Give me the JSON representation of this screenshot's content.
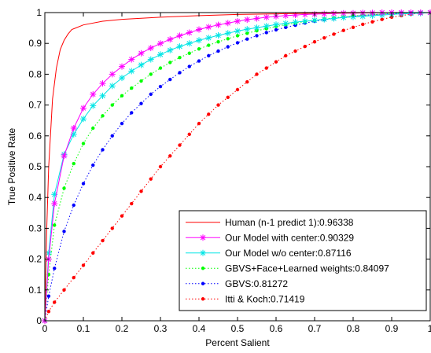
{
  "chart_data": {
    "type": "line",
    "xlabel": "Percent Salient",
    "ylabel": "True Positive Rate",
    "xlim": [
      0,
      1
    ],
    "ylim": [
      0,
      1
    ],
    "x_ticks": [
      "0",
      "0.1",
      "0.2",
      "0.3",
      "0.4",
      "0.5",
      "0.6",
      "0.7",
      "0.8",
      "0.9",
      "1"
    ],
    "y_ticks": [
      "0",
      "0.1",
      "0.2",
      "0.3",
      "0.4",
      "0.5",
      "0.6",
      "0.7",
      "0.8",
      "0.9",
      "1"
    ],
    "grid": false,
    "legend_position": "bottom-right",
    "series": [
      {
        "name": "Human (n-1 predict 1):0.96338",
        "color": "#ff0000",
        "line_style": "solid",
        "marker": "none",
        "x": [
          0,
          0.005,
          0.01,
          0.02,
          0.03,
          0.04,
          0.05,
          0.06,
          0.07,
          0.08,
          0.1,
          0.15,
          0.2,
          0.3,
          0.4,
          0.5,
          0.6,
          0.7,
          0.8,
          0.9,
          1.0
        ],
        "y": [
          0,
          0.3,
          0.5,
          0.72,
          0.82,
          0.88,
          0.91,
          0.93,
          0.945,
          0.95,
          0.96,
          0.972,
          0.978,
          0.985,
          0.99,
          0.994,
          0.996,
          0.998,
          0.999,
          1.0,
          1.0
        ]
      },
      {
        "name": "Our Model with center:0.90329",
        "color": "#ff00ff",
        "line_style": "solid",
        "marker": "asterisk",
        "x": [
          0,
          0.01,
          0.025,
          0.05,
          0.075,
          0.1,
          0.125,
          0.15,
          0.175,
          0.2,
          0.225,
          0.25,
          0.275,
          0.3,
          0.325,
          0.35,
          0.375,
          0.4,
          0.425,
          0.45,
          0.475,
          0.5,
          0.525,
          0.55,
          0.575,
          0.6,
          0.625,
          0.65,
          0.675,
          0.7,
          0.725,
          0.75,
          0.775,
          0.8,
          0.825,
          0.85,
          0.875,
          0.9,
          0.925,
          0.95,
          0.975,
          1.0
        ],
        "y": [
          0,
          0.2,
          0.38,
          0.535,
          0.625,
          0.69,
          0.735,
          0.77,
          0.8,
          0.825,
          0.848,
          0.868,
          0.885,
          0.9,
          0.913,
          0.925,
          0.935,
          0.945,
          0.953,
          0.96,
          0.966,
          0.972,
          0.977,
          0.981,
          0.985,
          0.988,
          0.99,
          0.992,
          0.994,
          0.995,
          0.996,
          0.997,
          0.998,
          0.998,
          0.999,
          0.999,
          1.0,
          1.0,
          1.0,
          1.0,
          1.0,
          1.0
        ]
      },
      {
        "name": "Our Model w/o center:0.87116",
        "color": "#00e5e5",
        "line_style": "solid",
        "marker": "asterisk",
        "x": [
          0,
          0.01,
          0.025,
          0.05,
          0.075,
          0.1,
          0.125,
          0.15,
          0.175,
          0.2,
          0.225,
          0.25,
          0.275,
          0.3,
          0.325,
          0.35,
          0.375,
          0.4,
          0.425,
          0.45,
          0.475,
          0.5,
          0.525,
          0.55,
          0.575,
          0.6,
          0.625,
          0.65,
          0.675,
          0.7,
          0.725,
          0.75,
          0.775,
          0.8,
          0.825,
          0.85,
          0.875,
          0.9,
          0.925,
          0.95,
          0.975,
          1.0
        ],
        "y": [
          0,
          0.22,
          0.41,
          0.54,
          0.605,
          0.655,
          0.698,
          0.73,
          0.762,
          0.788,
          0.81,
          0.83,
          0.848,
          0.864,
          0.878,
          0.89,
          0.9,
          0.91,
          0.918,
          0.926,
          0.933,
          0.94,
          0.946,
          0.951,
          0.956,
          0.961,
          0.965,
          0.969,
          0.972,
          0.975,
          0.978,
          0.981,
          0.984,
          0.986,
          0.988,
          0.99,
          0.992,
          0.994,
          0.996,
          0.997,
          0.998,
          1.0
        ]
      },
      {
        "name": "GBVS+Face+Learned weights:0.84097",
        "color": "#00ff00",
        "line_style": "dotted",
        "marker": "dot",
        "x": [
          0,
          0.01,
          0.025,
          0.05,
          0.075,
          0.1,
          0.125,
          0.15,
          0.175,
          0.2,
          0.225,
          0.25,
          0.275,
          0.3,
          0.325,
          0.35,
          0.375,
          0.4,
          0.425,
          0.45,
          0.475,
          0.5,
          0.525,
          0.55,
          0.575,
          0.6,
          0.625,
          0.65,
          0.675,
          0.7,
          0.725,
          0.75,
          0.775,
          0.8,
          0.825,
          0.85,
          0.875,
          0.9,
          0.925,
          0.95,
          0.975,
          1.0
        ],
        "y": [
          0,
          0.15,
          0.31,
          0.43,
          0.51,
          0.575,
          0.625,
          0.665,
          0.7,
          0.73,
          0.755,
          0.778,
          0.8,
          0.82,
          0.838,
          0.854,
          0.868,
          0.882,
          0.894,
          0.905,
          0.915,
          0.925,
          0.933,
          0.941,
          0.948,
          0.955,
          0.961,
          0.966,
          0.971,
          0.975,
          0.979,
          0.983,
          0.986,
          0.989,
          0.991,
          0.993,
          0.995,
          0.997,
          0.998,
          0.999,
          1.0,
          1.0
        ]
      },
      {
        "name": "GBVS:0.81272",
        "color": "#0000ff",
        "line_style": "dotted",
        "marker": "dot",
        "x": [
          0,
          0.01,
          0.025,
          0.05,
          0.075,
          0.1,
          0.125,
          0.15,
          0.175,
          0.2,
          0.225,
          0.25,
          0.275,
          0.3,
          0.325,
          0.35,
          0.375,
          0.4,
          0.425,
          0.45,
          0.475,
          0.5,
          0.525,
          0.55,
          0.575,
          0.6,
          0.625,
          0.65,
          0.675,
          0.7,
          0.725,
          0.75,
          0.775,
          0.8,
          0.825,
          0.85,
          0.875,
          0.9,
          0.925,
          0.95,
          0.975,
          1.0
        ],
        "y": [
          0,
          0.08,
          0.17,
          0.29,
          0.375,
          0.445,
          0.505,
          0.555,
          0.6,
          0.64,
          0.675,
          0.705,
          0.735,
          0.76,
          0.783,
          0.805,
          0.825,
          0.843,
          0.86,
          0.875,
          0.889,
          0.902,
          0.914,
          0.925,
          0.935,
          0.944,
          0.952,
          0.959,
          0.966,
          0.972,
          0.977,
          0.981,
          0.985,
          0.988,
          0.991,
          0.993,
          0.995,
          0.997,
          0.998,
          0.999,
          1.0,
          1.0
        ]
      },
      {
        "name": "Itti & Koch:0.71419",
        "color": "#ff0000",
        "line_style": "dotted",
        "marker": "dot",
        "x": [
          0,
          0.01,
          0.025,
          0.05,
          0.075,
          0.1,
          0.125,
          0.15,
          0.175,
          0.2,
          0.225,
          0.25,
          0.275,
          0.3,
          0.325,
          0.35,
          0.375,
          0.4,
          0.425,
          0.45,
          0.475,
          0.5,
          0.525,
          0.55,
          0.575,
          0.6,
          0.625,
          0.65,
          0.675,
          0.7,
          0.725,
          0.75,
          0.775,
          0.8,
          0.825,
          0.85,
          0.875,
          0.9,
          0.925,
          0.95,
          0.975,
          1.0
        ],
        "y": [
          0,
          0.03,
          0.06,
          0.1,
          0.14,
          0.18,
          0.22,
          0.26,
          0.3,
          0.34,
          0.38,
          0.42,
          0.46,
          0.5,
          0.535,
          0.57,
          0.605,
          0.64,
          0.67,
          0.7,
          0.725,
          0.75,
          0.775,
          0.8,
          0.82,
          0.84,
          0.86,
          0.875,
          0.89,
          0.905,
          0.918,
          0.93,
          0.942,
          0.952,
          0.962,
          0.97,
          0.978,
          0.985,
          0.99,
          0.995,
          0.998,
          1.0
        ]
      }
    ]
  }
}
